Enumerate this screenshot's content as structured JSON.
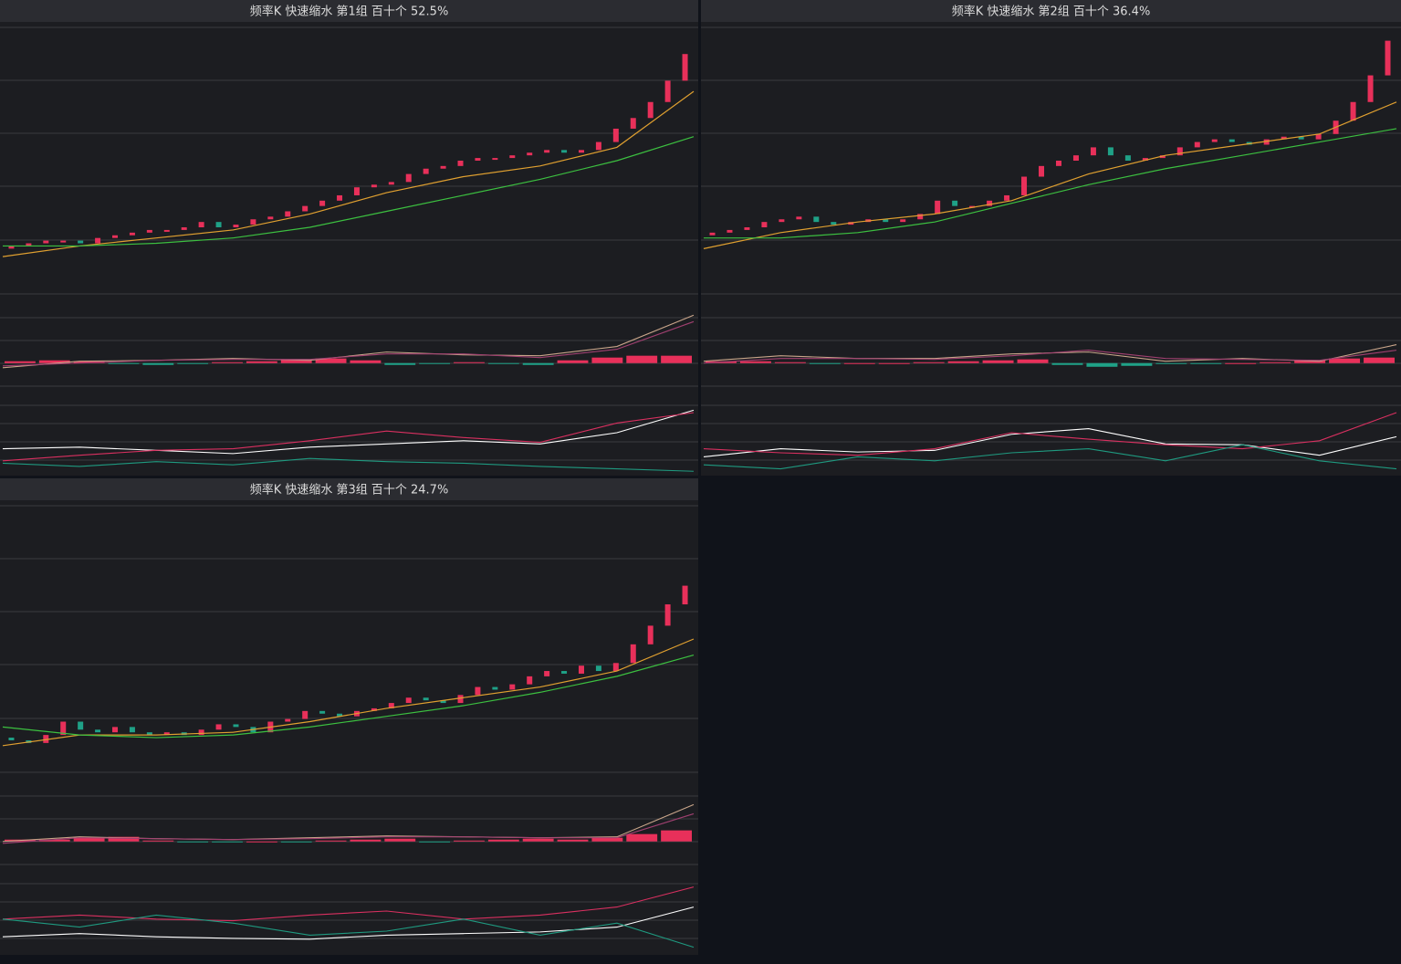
{
  "chart_data": [
    {
      "type": "candlestick",
      "title": "频率K  快速缩水  第1组  百十个  52.5%",
      "ylim": [
        0,
        100
      ],
      "up_color": "#e8305a",
      "down_color": "#1fa187",
      "first_open": 17,
      "closes": [
        18,
        19,
        20,
        20,
        19,
        21,
        22,
        23,
        24,
        24,
        25,
        27,
        25,
        26,
        28,
        29,
        31,
        33,
        35,
        37,
        40,
        41,
        42,
        45,
        47,
        48,
        50,
        51,
        51,
        52,
        53,
        54,
        53,
        54,
        57,
        62,
        66,
        72,
        80,
        90
      ],
      "ma": [
        {
          "color": "#e0a030",
          "values": [
            14,
            18,
            21,
            24,
            30,
            38,
            44,
            48,
            55,
            76
          ]
        },
        {
          "color": "#3cc040",
          "values": [
            18,
            18,
            19,
            21,
            25,
            31,
            37,
            43,
            50,
            59
          ]
        }
      ],
      "macd": {
        "ylim": [
          -25,
          75
        ],
        "lines": [
          {
            "color": "#c9a58a",
            "values": [
              -5,
              2,
              3,
              5,
              3,
              12,
              9,
              8,
              18,
              52
            ]
          },
          {
            "color": "#a04070",
            "values": [
              -3,
              0,
              3,
              4,
              4,
              10,
              10,
              6,
              15,
              45
            ]
          }
        ],
        "bars": [
          2,
          3,
          2,
          -1,
          -2,
          -1,
          1,
          2,
          4,
          5,
          3,
          -2,
          -1,
          1,
          -1,
          -2,
          3,
          6,
          8,
          8
        ]
      },
      "kdj": {
        "ylim": [
          0,
          100
        ],
        "lines": [
          {
            "color": "#ffffff",
            "values": [
              30,
              32,
              28,
              24,
              32,
              36,
              40,
              36,
              50,
              78
            ]
          },
          {
            "color": "#d93060",
            "values": [
              15,
              22,
              28,
              30,
              40,
              52,
              44,
              38,
              62,
              75
            ]
          },
          {
            "color": "#1f9a80",
            "values": [
              12,
              8,
              14,
              10,
              18,
              14,
              12,
              8,
              5,
              2
            ]
          }
        ]
      }
    },
    {
      "type": "candlestick",
      "title": "频率K  快速缩水  第2组  百十个  36.4%",
      "ylim": [
        0,
        100
      ],
      "up_color": "#e8305a",
      "down_color": "#1fa187",
      "first_open": 22,
      "closes": [
        23,
        24,
        25,
        27,
        28,
        29,
        27,
        26,
        27,
        28,
        27,
        28,
        30,
        35,
        33,
        33,
        35,
        37,
        44,
        48,
        50,
        52,
        55,
        52,
        50,
        51,
        52,
        55,
        57,
        58,
        57,
        56,
        58,
        59,
        58,
        60,
        65,
        72,
        82,
        95
      ],
      "ma": [
        {
          "color": "#e0a030",
          "values": [
            17,
            23,
            27,
            30,
            35,
            45,
            52,
            56,
            60,
            72
          ]
        },
        {
          "color": "#3cc040",
          "values": [
            21,
            21,
            23,
            27,
            34,
            41,
            47,
            52,
            57,
            62
          ]
        }
      ],
      "macd": {
        "ylim": [
          -25,
          75
        ],
        "lines": [
          {
            "color": "#c9a58a",
            "values": [
              2,
              8,
              5,
              5,
              10,
              12,
              2,
              5,
              2,
              20
            ]
          },
          {
            "color": "#a04070",
            "values": [
              0,
              5,
              5,
              4,
              8,
              14,
              5,
              4,
              3,
              14
            ]
          }
        ],
        "bars": [
          2,
          2,
          1,
          -1,
          0,
          0,
          1,
          2,
          3,
          4,
          -2,
          -4,
          -3,
          -1,
          -1,
          0,
          1,
          3,
          5,
          6
        ]
      },
      "kdj": {
        "ylim": [
          0,
          100
        ],
        "lines": [
          {
            "color": "#ffffff",
            "values": [
              20,
              30,
              26,
              28,
              48,
              55,
              36,
              35,
              22,
              45
            ]
          },
          {
            "color": "#d93060",
            "values": [
              30,
              25,
              22,
              30,
              50,
              42,
              35,
              30,
              40,
              75
            ]
          },
          {
            "color": "#1f9a80",
            "values": [
              10,
              5,
              20,
              15,
              25,
              30,
              15,
              35,
              15,
              5
            ]
          }
        ]
      }
    },
    {
      "type": "candlestick",
      "title": "频率K  快速缩水  第3组  百十个  24.7%",
      "ylim": [
        0,
        100
      ],
      "up_color": "#e8305a",
      "down_color": "#1fa187",
      "first_open": 13,
      "closes": [
        12,
        11,
        14,
        19,
        16,
        15,
        17,
        15,
        14,
        15,
        14,
        16,
        18,
        17,
        15,
        19,
        20,
        23,
        22,
        21,
        23,
        24,
        26,
        28,
        27,
        26,
        29,
        32,
        31,
        33,
        36,
        38,
        37,
        40,
        38,
        41,
        48,
        55,
        63,
        70
      ],
      "ma": [
        {
          "color": "#e0a030",
          "values": [
            10,
            14,
            14,
            15,
            19,
            24,
            28,
            32,
            38,
            50
          ]
        },
        {
          "color": "#3cc040",
          "values": [
            17,
            14,
            13,
            14,
            17,
            21,
            25,
            30,
            36,
            44
          ]
        }
      ],
      "macd": {
        "ylim": [
          -25,
          75
        ],
        "lines": [
          {
            "color": "#c9a58a",
            "values": [
              0,
              5,
              3,
              2,
              4,
              6,
              5,
              4,
              5,
              40
            ]
          },
          {
            "color": "#a04070",
            "values": [
              -2,
              4,
              3,
              2,
              3,
              5,
              5,
              4,
              4,
              30
            ]
          }
        ],
        "bars": [
          2,
          2,
          4,
          5,
          1,
          -1,
          -1,
          0,
          -1,
          1,
          2,
          3,
          -1,
          1,
          2,
          3,
          2,
          4,
          8,
          12
        ]
      },
      "kdj": {
        "ylim": [
          0,
          100
        ],
        "lines": [
          {
            "color": "#ffffff",
            "values": [
              18,
              22,
              18,
              16,
              15,
              20,
              22,
              24,
              30,
              55
            ]
          },
          {
            "color": "#d93060",
            "values": [
              40,
              45,
              40,
              38,
              45,
              50,
              40,
              45,
              55,
              80
            ]
          },
          {
            "color": "#1f9a80",
            "values": [
              40,
              30,
              45,
              35,
              20,
              25,
              40,
              20,
              35,
              5
            ]
          }
        ]
      }
    }
  ]
}
